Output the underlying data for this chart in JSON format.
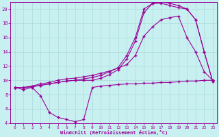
{
  "xlabel": "Windchill (Refroidissement éolien,°C)",
  "bg_color": "#c8f0f0",
  "grid_color": "#b0dede",
  "line_color": "#990099",
  "xlim": [
    -0.5,
    23.5
  ],
  "ylim": [
    4,
    21
  ],
  "xticks": [
    0,
    1,
    2,
    3,
    4,
    5,
    6,
    7,
    8,
    9,
    10,
    11,
    12,
    13,
    14,
    15,
    16,
    17,
    18,
    19,
    20,
    21,
    22,
    23
  ],
  "yticks": [
    4,
    6,
    8,
    10,
    12,
    14,
    16,
    18,
    20
  ],
  "line1_x": [
    0,
    1,
    2,
    3,
    4,
    5,
    6,
    7,
    8,
    9,
    10,
    11,
    12,
    13,
    14,
    15,
    16,
    17,
    18,
    19,
    20,
    21,
    22,
    23
  ],
  "line1_y": [
    9.0,
    8.7,
    9.0,
    7.8,
    5.5,
    4.8,
    4.5,
    4.2,
    4.5,
    9.0,
    9.2,
    9.3,
    9.4,
    9.5,
    9.5,
    9.6,
    9.6,
    9.7,
    9.7,
    9.8,
    9.9,
    9.9,
    10.0,
    10.0
  ],
  "line2_x": [
    0,
    1,
    2,
    3,
    4,
    5,
    6,
    7,
    8,
    9,
    10,
    11,
    12,
    13,
    14,
    15,
    16,
    17,
    18,
    19,
    20,
    21,
    22,
    23
  ],
  "line2_y": [
    9.0,
    9.0,
    9.2,
    9.5,
    9.7,
    10.0,
    10.2,
    10.3,
    10.5,
    10.7,
    11.0,
    11.3,
    11.7,
    12.2,
    13.5,
    16.2,
    17.5,
    18.5,
    18.8,
    19.0,
    16.0,
    14.0,
    11.2,
    10.0
  ],
  "line3_x": [
    0,
    1,
    2,
    3,
    4,
    5,
    6,
    7,
    8,
    9,
    10,
    11,
    12,
    13,
    14,
    15,
    16,
    17,
    18,
    19,
    20,
    21,
    22,
    23
  ],
  "line3_y": [
    9.0,
    9.0,
    9.1,
    9.3,
    9.5,
    9.7,
    9.9,
    10.0,
    10.0,
    10.0,
    10.3,
    10.8,
    11.5,
    13.0,
    15.5,
    19.5,
    20.8,
    21.0,
    20.8,
    20.5,
    20.0,
    18.5,
    14.0,
    9.8
  ],
  "line4_x": [
    0,
    1,
    2,
    3,
    4,
    5,
    6,
    7,
    8,
    9,
    10,
    11,
    12,
    13,
    14,
    15,
    16,
    17,
    18,
    19,
    20,
    21,
    22,
    23
  ],
  "line4_y": [
    9.0,
    9.0,
    9.1,
    9.3,
    9.5,
    9.7,
    9.9,
    10.0,
    10.2,
    10.4,
    10.7,
    11.2,
    11.8,
    13.5,
    16.0,
    20.0,
    20.8,
    20.8,
    20.5,
    20.2,
    20.0,
    18.5,
    14.0,
    9.8
  ]
}
